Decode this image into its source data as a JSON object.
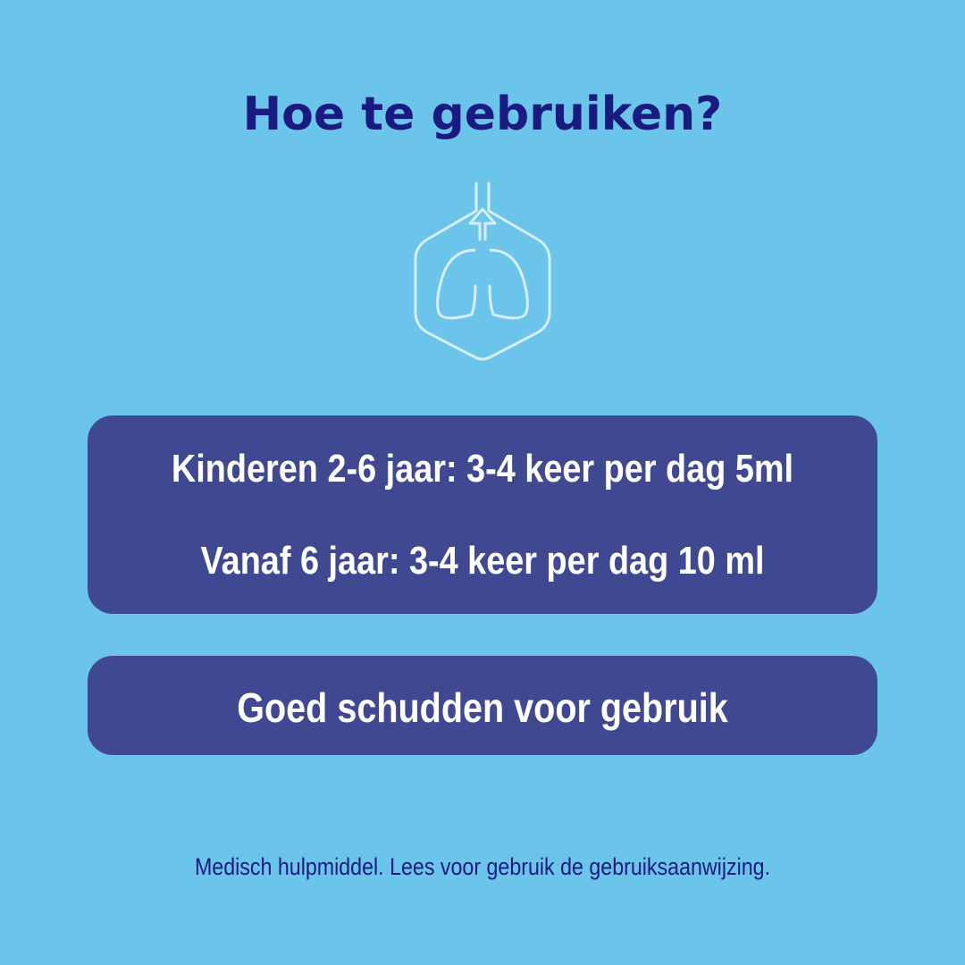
{
  "header": {
    "title": "Hoe te gebruiken?"
  },
  "icon": {
    "name": "lungs-hexagon-icon",
    "color": "#d6eefa"
  },
  "dosage": {
    "lines": [
      "Kinderen 2-6 jaar: 3-4 keer per dag 5ml",
      "Vanaf 6 jaar: 3-4 keer per dag 10 ml"
    ]
  },
  "instruction": {
    "text": "Goed schudden voor gebruik"
  },
  "footer": {
    "disclaimer": "Medisch hulpmiddel. Lees voor gebruik de gebruiksaanwijzing."
  },
  "colors": {
    "background": "#6bc4ea",
    "box": "#3f4891",
    "title": "#1b1a80"
  }
}
